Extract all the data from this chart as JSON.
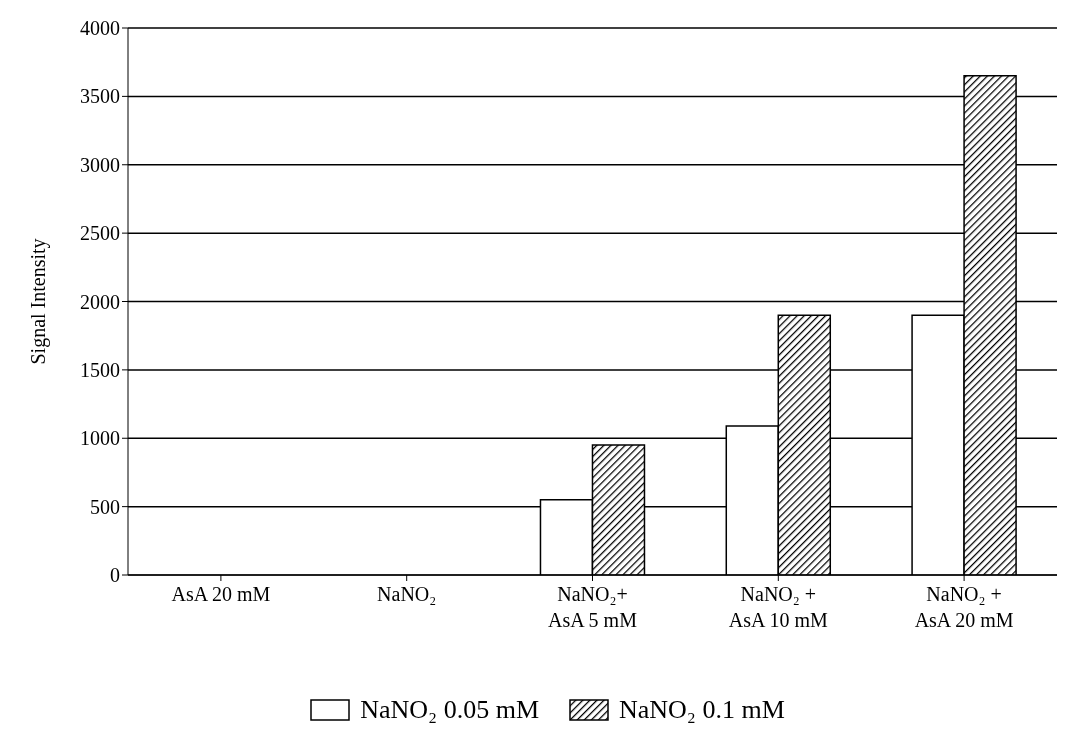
{
  "chart_data": {
    "type": "bar",
    "ylabel": "Signal Intensity",
    "categories": [
      "AsA  20 mM",
      "NaNO₂",
      "NaNO₂+\nAsA 5 mM",
      "NaNO₂ +\nAsA 10 mM",
      "NaNO₂ +\nAsA 20 mM"
    ],
    "series": [
      {
        "name": "NaNO₂ 0.05 mM",
        "color": "#ffffff",
        "values": [
          0,
          0,
          550,
          1090,
          1900
        ]
      },
      {
        "name": "NaNO₂ 0.1 mM",
        "color": "#000000",
        "values": [
          0,
          0,
          950,
          1900,
          3650
        ]
      }
    ],
    "ylim": [
      0,
      4000
    ],
    "yticks": [
      0,
      500,
      1000,
      1500,
      2000,
      2500,
      3000,
      3500,
      4000
    ],
    "grid": "y",
    "legend": "bottom"
  }
}
